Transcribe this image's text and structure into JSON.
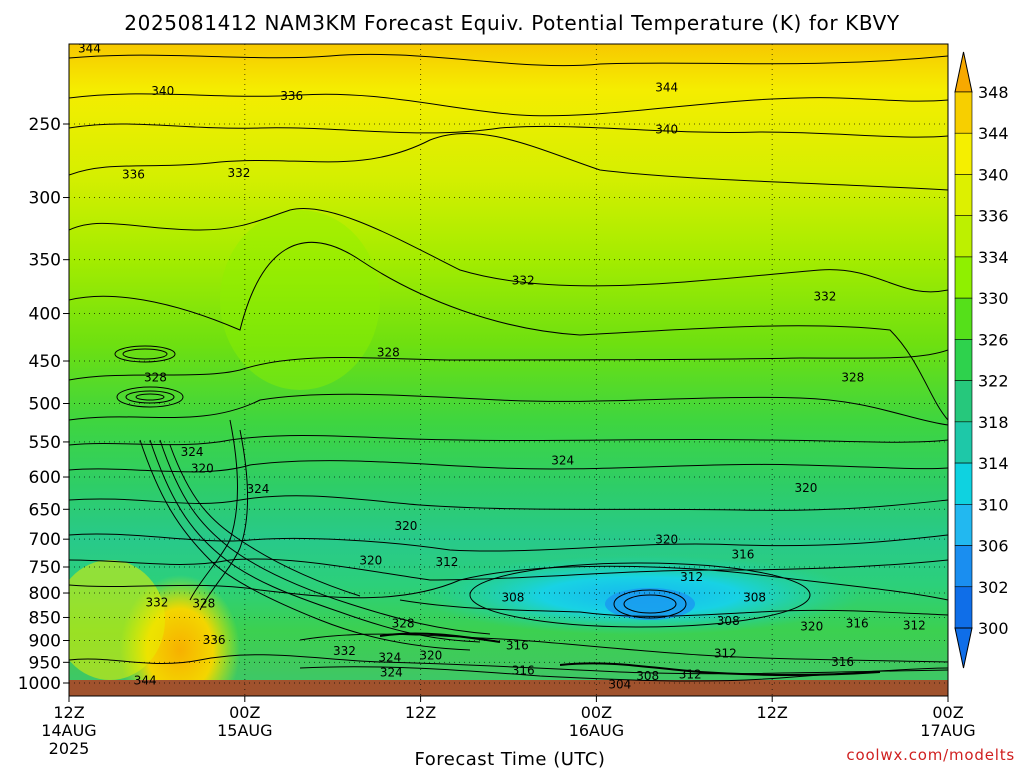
{
  "chart_data": {
    "type": "heatmap",
    "title": "2025081412 NAM3KM Forecast Equiv. Potential Temperature (K) for KBVY",
    "xlabel": "Forecast Time (UTC)",
    "ylabel": "",
    "credit": "coolwx.com/modelts",
    "x_ticks": [
      {
        "hour": 0,
        "l1": "12Z",
        "l2": "14AUG",
        "l3": "2025"
      },
      {
        "hour": 12,
        "l1": "00Z",
        "l2": "15AUG",
        "l3": ""
      },
      {
        "hour": 24,
        "l1": "12Z",
        "l2": "",
        "l3": ""
      },
      {
        "hour": 36,
        "l1": "00Z",
        "l2": "16AUG",
        "l3": ""
      },
      {
        "hour": 48,
        "l1": "12Z",
        "l2": "",
        "l3": ""
      },
      {
        "hour": 60,
        "l1": "00Z",
        "l2": "17AUG",
        "l3": ""
      }
    ],
    "xlim": [
      0,
      60
    ],
    "y_ticks": [
      250,
      300,
      350,
      400,
      450,
      500,
      550,
      600,
      650,
      700,
      750,
      800,
      850,
      900,
      950,
      1000
    ],
    "ylim": [
      200,
      1010
    ],
    "y_scale": "log",
    "y_reversed": true,
    "grid": true,
    "colorbar": {
      "labels": [
        348,
        344,
        340,
        336,
        334,
        330,
        326,
        322,
        318,
        314,
        310,
        306,
        302,
        300
      ],
      "colors": [
        "#f7a900",
        "#f7cf00",
        "#f5ef00",
        "#ddf000",
        "#bdf000",
        "#8ff000",
        "#55e01a",
        "#2ed24d",
        "#26c87c",
        "#1ec8a8",
        "#0fd2e0",
        "#22b8f0",
        "#1a8ef0",
        "#0f6ee8"
      ]
    },
    "contour_labels": [
      {
        "hour": 1.4,
        "p": 207,
        "v": 344
      },
      {
        "hour": 6.4,
        "p": 230,
        "v": 340
      },
      {
        "hour": 15.2,
        "p": 233,
        "v": 336
      },
      {
        "hour": 40.8,
        "p": 228,
        "v": 344
      },
      {
        "hour": 40.8,
        "p": 253,
        "v": 340
      },
      {
        "hour": 4.4,
        "p": 283,
        "v": 336
      },
      {
        "hour": 11.6,
        "p": 282,
        "v": 332
      },
      {
        "hour": 31.0,
        "p": 368,
        "v": 332
      },
      {
        "hour": 51.6,
        "p": 383,
        "v": 332
      },
      {
        "hour": 21.8,
        "p": 440,
        "v": 328
      },
      {
        "hour": 5.9,
        "p": 468,
        "v": 328
      },
      {
        "hour": 53.5,
        "p": 468,
        "v": 328
      },
      {
        "hour": 8.4,
        "p": 563,
        "v": 324
      },
      {
        "hour": 33.7,
        "p": 575,
        "v": 324
      },
      {
        "hour": 9.1,
        "p": 587,
        "v": 320
      },
      {
        "hour": 12.9,
        "p": 617,
        "v": 324
      },
      {
        "hour": 50.3,
        "p": 616,
        "v": 320
      },
      {
        "hour": 23.0,
        "p": 677,
        "v": 320
      },
      {
        "hour": 40.8,
        "p": 700,
        "v": 320
      },
      {
        "hour": 20.6,
        "p": 737,
        "v": 320
      },
      {
        "hour": 46.0,
        "p": 726,
        "v": 316
      },
      {
        "hour": 25.8,
        "p": 740,
        "v": 312
      },
      {
        "hour": 42.5,
        "p": 768,
        "v": 312
      },
      {
        "hour": 6.0,
        "p": 818,
        "v": 332
      },
      {
        "hour": 9.2,
        "p": 820,
        "v": 328
      },
      {
        "hour": 30.3,
        "p": 808,
        "v": 308
      },
      {
        "hour": 46.8,
        "p": 808,
        "v": 308
      },
      {
        "hour": 45.0,
        "p": 856,
        "v": 308
      },
      {
        "hour": 50.7,
        "p": 868,
        "v": 320
      },
      {
        "hour": 53.8,
        "p": 862,
        "v": 316
      },
      {
        "hour": 57.7,
        "p": 866,
        "v": 312
      },
      {
        "hour": 22.8,
        "p": 862,
        "v": 328
      },
      {
        "hour": 9.9,
        "p": 898,
        "v": 336
      },
      {
        "hour": 30.6,
        "p": 910,
        "v": 316
      },
      {
        "hour": 18.8,
        "p": 923,
        "v": 332
      },
      {
        "hour": 24.7,
        "p": 933,
        "v": 320
      },
      {
        "hour": 21.9,
        "p": 937,
        "v": 324
      },
      {
        "hour": 44.8,
        "p": 928,
        "v": 312
      },
      {
        "hour": 52.8,
        "p": 948,
        "v": 316
      },
      {
        "hour": 31.0,
        "p": 968,
        "v": 316
      },
      {
        "hour": 22.0,
        "p": 973,
        "v": 324
      },
      {
        "hour": 39.5,
        "p": 981,
        "v": 308
      },
      {
        "hour": 42.4,
        "p": 978,
        "v": 312
      },
      {
        "hour": 5.2,
        "p": 993,
        "v": 344
      },
      {
        "hour": 37.6,
        "p": 1003,
        "v": 304
      }
    ]
  }
}
